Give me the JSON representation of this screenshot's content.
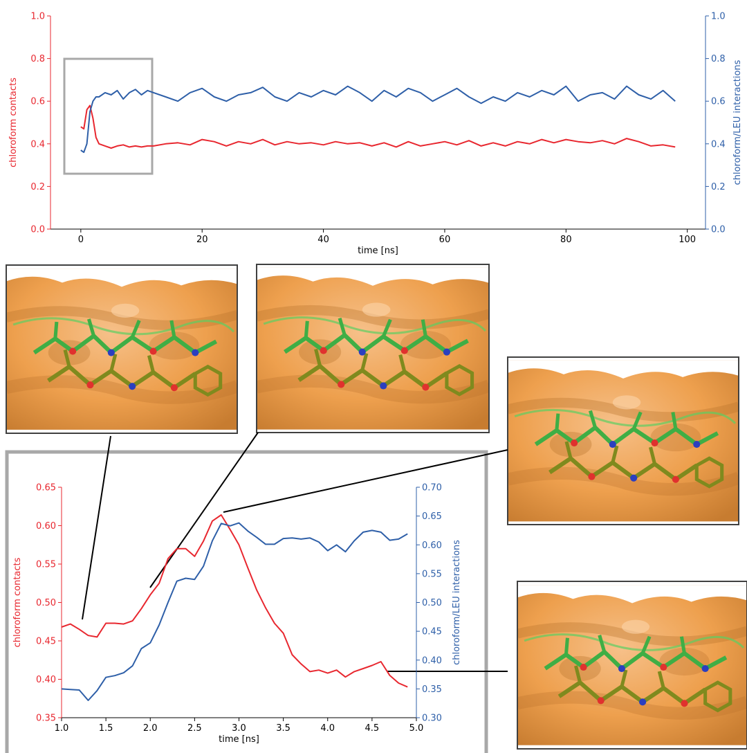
{
  "colors": {
    "contacts": "#e8272f",
    "interactions": "#2e5fa8",
    "zoom_box": "#a8a8a8",
    "surface": "#f0a552",
    "surface_shadow": "#b8722c",
    "stick_green": "#3fae45",
    "stick_olive": "#7f8a1e"
  },
  "icons": [
    "molecule-snapshot"
  ],
  "chart_data": [
    {
      "type": "line",
      "xlabel": "time [ns]",
      "ylabel_left": "chloroform contacts",
      "ylabel_right": "chloroform/LEU interactions",
      "xlim": [
        -5,
        103
      ],
      "ylim_left": [
        0.0,
        1.0
      ],
      "ylim_right": [
        0.0,
        1.0
      ],
      "x_ticks": [
        "0",
        "20",
        "40",
        "60",
        "80",
        "100"
      ],
      "y_ticks_left": [
        "0.0",
        "0.2",
        "0.4",
        "0.6",
        "0.8",
        "1.0"
      ],
      "y_ticks_right": [
        "0.0",
        "0.2",
        "0.4",
        "0.6",
        "0.8",
        "1.0"
      ],
      "grid": false,
      "series": [
        {
          "name": "chloroform contacts",
          "axis": "left",
          "x": [
            0,
            0.5,
            1,
            1.5,
            2,
            2.5,
            3,
            4,
            5,
            6,
            7,
            8,
            9,
            10,
            11,
            12,
            14,
            16,
            18,
            20,
            22,
            24,
            26,
            28,
            30,
            32,
            34,
            36,
            38,
            40,
            42,
            44,
            46,
            48,
            50,
            52,
            54,
            56,
            58,
            60,
            62,
            64,
            66,
            68,
            70,
            72,
            74,
            76,
            78,
            80,
            82,
            84,
            86,
            88,
            90,
            92,
            94,
            96,
            98
          ],
          "y": [
            0.48,
            0.47,
            0.56,
            0.58,
            0.52,
            0.43,
            0.4,
            0.39,
            0.38,
            0.39,
            0.395,
            0.385,
            0.39,
            0.385,
            0.39,
            0.39,
            0.4,
            0.405,
            0.395,
            0.42,
            0.41,
            0.39,
            0.41,
            0.4,
            0.42,
            0.395,
            0.41,
            0.4,
            0.405,
            0.395,
            0.41,
            0.4,
            0.405,
            0.39,
            0.405,
            0.385,
            0.41,
            0.39,
            0.4,
            0.41,
            0.395,
            0.415,
            0.39,
            0.405,
            0.39,
            0.41,
            0.4,
            0.42,
            0.405,
            0.42,
            0.41,
            0.405,
            0.415,
            0.4,
            0.425,
            0.41,
            0.39,
            0.395,
            0.385
          ]
        },
        {
          "name": "chloroform/LEU interactions",
          "axis": "right",
          "x": [
            0,
            0.5,
            1,
            1.5,
            2,
            2.5,
            3,
            4,
            5,
            6,
            7,
            8,
            9,
            10,
            11,
            12,
            14,
            16,
            18,
            20,
            22,
            24,
            26,
            28,
            30,
            32,
            34,
            36,
            38,
            40,
            42,
            44,
            46,
            48,
            50,
            52,
            54,
            56,
            58,
            60,
            62,
            64,
            66,
            68,
            70,
            72,
            74,
            76,
            78,
            80,
            82,
            84,
            86,
            88,
            90,
            92,
            94,
            96,
            98
          ],
          "y": [
            0.37,
            0.36,
            0.4,
            0.55,
            0.6,
            0.62,
            0.62,
            0.64,
            0.63,
            0.65,
            0.61,
            0.64,
            0.655,
            0.63,
            0.65,
            0.64,
            0.62,
            0.6,
            0.64,
            0.66,
            0.62,
            0.6,
            0.63,
            0.64,
            0.665,
            0.62,
            0.6,
            0.64,
            0.62,
            0.65,
            0.63,
            0.67,
            0.64,
            0.6,
            0.65,
            0.62,
            0.66,
            0.64,
            0.6,
            0.63,
            0.66,
            0.62,
            0.59,
            0.62,
            0.6,
            0.64,
            0.62,
            0.65,
            0.63,
            0.67,
            0.6,
            0.63,
            0.64,
            0.61,
            0.67,
            0.63,
            0.61,
            0.65,
            0.6
          ]
        }
      ]
    },
    {
      "type": "line",
      "xlabel": "time [ns]",
      "ylabel_left": "chloroform contacts",
      "ylabel_right": "chloroform/LEU interactions",
      "xlim": [
        1.0,
        5.0
      ],
      "ylim_left": [
        0.35,
        0.65
      ],
      "ylim_right": [
        0.3,
        0.7
      ],
      "x_ticks": [
        "1.0",
        "1.5",
        "2.0",
        "2.5",
        "3.0",
        "3.5",
        "4.0",
        "4.5",
        "5.0"
      ],
      "y_ticks_left": [
        "0.35",
        "0.40",
        "0.45",
        "0.50",
        "0.55",
        "0.60",
        "0.65"
      ],
      "y_ticks_right": [
        "0.30",
        "0.35",
        "0.40",
        "0.45",
        "0.50",
        "0.55",
        "0.60",
        "0.65",
        "0.70"
      ],
      "grid": false,
      "series": [
        {
          "name": "chloroform contacts",
          "axis": "left",
          "x": [
            1.0,
            1.1,
            1.2,
            1.3,
            1.4,
            1.5,
            1.6,
            1.7,
            1.8,
            1.9,
            2.0,
            2.1,
            2.2,
            2.3,
            2.4,
            2.5,
            2.6,
            2.7,
            2.8,
            2.9,
            3.0,
            3.1,
            3.2,
            3.3,
            3.4,
            3.5,
            3.6,
            3.7,
            3.8,
            3.9,
            4.0,
            4.1,
            4.2,
            4.3,
            4.4,
            4.5,
            4.6,
            4.7,
            4.8,
            4.9
          ],
          "y": [
            0.468,
            0.472,
            0.465,
            0.457,
            0.455,
            0.473,
            0.473,
            0.472,
            0.476,
            0.492,
            0.51,
            0.525,
            0.557,
            0.57,
            0.57,
            0.56,
            0.58,
            0.606,
            0.614,
            0.595,
            0.575,
            0.545,
            0.516,
            0.493,
            0.473,
            0.46,
            0.432,
            0.42,
            0.41,
            0.412,
            0.408,
            0.412,
            0.403,
            0.41,
            0.414,
            0.418,
            0.423,
            0.405,
            0.395,
            0.39
          ]
        },
        {
          "name": "chloroform/LEU interactions",
          "axis": "right",
          "x": [
            1.0,
            1.1,
            1.2,
            1.3,
            1.4,
            1.5,
            1.6,
            1.7,
            1.8,
            1.9,
            2.0,
            2.1,
            2.2,
            2.3,
            2.4,
            2.5,
            2.6,
            2.7,
            2.8,
            2.9,
            3.0,
            3.1,
            3.2,
            3.3,
            3.4,
            3.5,
            3.6,
            3.7,
            3.8,
            3.9,
            4.0,
            4.1,
            4.2,
            4.3,
            4.4,
            4.5,
            4.6,
            4.7,
            4.8,
            4.9
          ],
          "y": [
            0.35,
            0.349,
            0.348,
            0.33,
            0.347,
            0.37,
            0.373,
            0.378,
            0.39,
            0.42,
            0.43,
            0.461,
            0.5,
            0.537,
            0.542,
            0.54,
            0.563,
            0.607,
            0.637,
            0.633,
            0.638,
            0.624,
            0.613,
            0.601,
            0.601,
            0.611,
            0.612,
            0.61,
            0.612,
            0.605,
            0.59,
            0.6,
            0.588,
            0.607,
            0.622,
            0.625,
            0.622,
            0.608,
            0.61,
            0.619
          ]
        }
      ]
    }
  ]
}
